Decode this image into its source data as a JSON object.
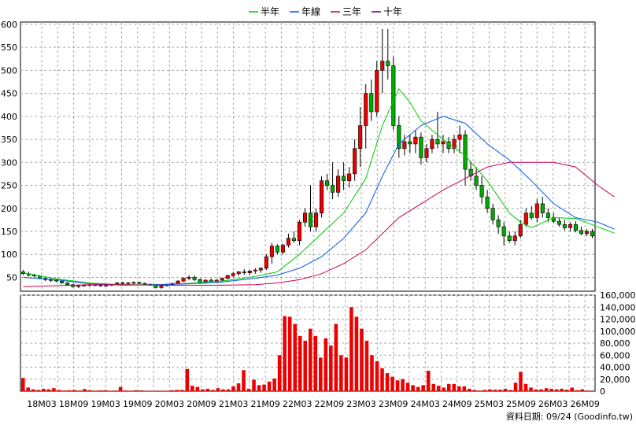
{
  "legend": [
    {
      "label": "半年",
      "color": "#00cc00"
    },
    {
      "label": "年線",
      "color": "#0055ee"
    },
    {
      "label": "三年",
      "color": "#cc0055"
    },
    {
      "label": "十年",
      "color": "#660088"
    }
  ],
  "source_label": "資料日期: 09/24  (Goodinfo.tw)",
  "chart_data": [
    {
      "type": "candlestick",
      "title": "",
      "x_ticks": [
        "18M03",
        "18M09",
        "19M03",
        "19M09",
        "20M03",
        "20M09",
        "21M03",
        "21M09",
        "22M03",
        "22M09",
        "23M03",
        "23M09",
        "24M03",
        "24M09",
        "25M03",
        "25M09",
        "26M03",
        "26M09"
      ],
      "y_ticks": [
        50,
        100,
        150,
        200,
        250,
        300,
        350,
        400,
        450,
        500,
        550,
        600
      ],
      "ylim": [
        20,
        605
      ],
      "grid": true,
      "candles": [
        [
          62,
          66,
          55,
          58
        ],
        [
          58,
          62,
          52,
          55
        ],
        [
          55,
          58,
          50,
          53
        ],
        [
          53,
          55,
          46,
          48
        ],
        [
          48,
          50,
          42,
          45
        ],
        [
          45,
          48,
          40,
          44
        ],
        [
          44,
          46,
          40,
          42
        ],
        [
          42,
          44,
          36,
          38
        ],
        [
          38,
          40,
          32,
          34
        ],
        [
          34,
          36,
          28,
          30
        ],
        [
          30,
          34,
          27,
          32
        ],
        [
          32,
          35,
          30,
          33
        ],
        [
          33,
          36,
          31,
          34
        ],
        [
          34,
          36,
          31,
          33
        ],
        [
          33,
          35,
          30,
          32
        ],
        [
          32,
          34,
          30,
          33
        ],
        [
          33,
          36,
          31,
          35
        ],
        [
          35,
          40,
          33,
          38
        ],
        [
          38,
          41,
          35,
          37
        ],
        [
          37,
          40,
          34,
          38
        ],
        [
          38,
          41,
          35,
          39
        ],
        [
          39,
          41,
          35,
          37
        ],
        [
          37,
          39,
          33,
          35
        ],
        [
          35,
          37,
          32,
          34
        ],
        [
          34,
          36,
          26,
          28
        ],
        [
          28,
          34,
          25,
          32
        ],
        [
          32,
          36,
          30,
          34
        ],
        [
          34,
          38,
          32,
          37
        ],
        [
          37,
          44,
          35,
          42
        ],
        [
          42,
          50,
          40,
          48
        ],
        [
          48,
          55,
          44,
          50
        ],
        [
          50,
          54,
          42,
          45
        ],
        [
          45,
          48,
          36,
          38
        ],
        [
          38,
          46,
          36,
          44
        ],
        [
          44,
          48,
          38,
          40
        ],
        [
          40,
          46,
          38,
          44
        ],
        [
          44,
          50,
          42,
          48
        ],
        [
          48,
          56,
          46,
          54
        ],
        [
          54,
          62,
          50,
          58
        ],
        [
          58,
          64,
          54,
          62
        ],
        [
          62,
          68,
          56,
          60
        ],
        [
          60,
          66,
          55,
          64
        ],
        [
          64,
          70,
          58,
          66
        ],
        [
          66,
          72,
          60,
          70
        ],
        [
          70,
          100,
          66,
          95
        ],
        [
          95,
          125,
          80,
          118
        ],
        [
          118,
          122,
          100,
          105
        ],
        [
          105,
          124,
          100,
          120
        ],
        [
          120,
          145,
          115,
          135
        ],
        [
          135,
          150,
          125,
          130
        ],
        [
          130,
          175,
          120,
          170
        ],
        [
          170,
          200,
          160,
          190
        ],
        [
          190,
          250,
          150,
          160
        ],
        [
          160,
          200,
          150,
          190
        ],
        [
          190,
          270,
          180,
          260
        ],
        [
          260,
          275,
          240,
          250
        ],
        [
          250,
          300,
          220,
          235
        ],
        [
          235,
          285,
          225,
          270
        ],
        [
          270,
          300,
          240,
          260
        ],
        [
          260,
          290,
          245,
          275
        ],
        [
          275,
          350,
          260,
          330
        ],
        [
          330,
          420,
          290,
          380
        ],
        [
          380,
          470,
          330,
          450
        ],
        [
          450,
          480,
          390,
          410
        ],
        [
          410,
          520,
          400,
          500
        ],
        [
          500,
          590,
          450,
          520
        ],
        [
          520,
          590,
          480,
          510
        ],
        [
          510,
          530,
          370,
          380
        ],
        [
          380,
          400,
          310,
          330
        ],
        [
          330,
          360,
          315,
          345
        ],
        [
          345,
          360,
          320,
          340
        ],
        [
          340,
          370,
          320,
          355
        ],
        [
          355,
          365,
          295,
          310
        ],
        [
          310,
          340,
          300,
          330
        ],
        [
          330,
          360,
          320,
          350
        ],
        [
          350,
          410,
          330,
          340
        ],
        [
          340,
          360,
          320,
          345
        ],
        [
          345,
          355,
          320,
          330
        ],
        [
          330,
          360,
          320,
          350
        ],
        [
          350,
          380,
          320,
          360
        ],
        [
          360,
          370,
          250,
          285
        ],
        [
          285,
          300,
          260,
          270
        ],
        [
          270,
          290,
          240,
          250
        ],
        [
          250,
          270,
          210,
          225
        ],
        [
          225,
          240,
          190,
          200
        ],
        [
          200,
          210,
          165,
          175
        ],
        [
          175,
          185,
          145,
          160
        ],
        [
          160,
          170,
          120,
          140
        ],
        [
          140,
          150,
          125,
          130
        ],
        [
          130,
          150,
          120,
          140
        ],
        [
          140,
          175,
          135,
          165
        ],
        [
          165,
          200,
          160,
          190
        ],
        [
          190,
          205,
          175,
          180
        ],
        [
          180,
          220,
          170,
          210
        ],
        [
          210,
          225,
          180,
          190
        ],
        [
          190,
          200,
          170,
          180
        ],
        [
          180,
          190,
          168,
          172
        ],
        [
          172,
          180,
          160,
          165
        ],
        [
          165,
          175,
          152,
          158
        ],
        [
          158,
          170,
          150,
          165
        ],
        [
          165,
          172,
          148,
          152
        ],
        [
          152,
          160,
          142,
          145
        ],
        [
          145,
          155,
          140,
          150
        ],
        [
          150,
          155,
          135,
          140
        ]
      ],
      "ma_lines": [
        {
          "name": "半年",
          "values": [
            [
              0,
              60
            ],
            [
              6,
              47
            ],
            [
              12,
              38
            ],
            [
              18,
              34
            ],
            [
              24,
              34
            ],
            [
              30,
              37
            ],
            [
              36,
              42
            ],
            [
              42,
              52
            ],
            [
              46,
              62
            ],
            [
              50,
              100
            ],
            [
              54,
              145
            ],
            [
              58,
              190
            ],
            [
              62,
              265
            ],
            [
              65,
              380
            ],
            [
              68,
              460
            ],
            [
              70,
              430
            ],
            [
              72,
              390
            ],
            [
              76,
              350
            ],
            [
              80,
              315
            ],
            [
              84,
              260
            ],
            [
              88,
              190
            ],
            [
              90,
              170
            ],
            [
              92,
              158
            ],
            [
              96,
              180
            ],
            [
              100,
              178
            ],
            [
              104,
              160
            ],
            [
              107,
              146
            ]
          ]
        },
        {
          "name": "年線",
          "values": [
            [
              0,
              50
            ],
            [
              6,
              45
            ],
            [
              12,
              36
            ],
            [
              18,
              33
            ],
            [
              24,
              34
            ],
            [
              30,
              36
            ],
            [
              36,
              40
            ],
            [
              42,
              48
            ],
            [
              46,
              55
            ],
            [
              50,
              70
            ],
            [
              54,
              95
            ],
            [
              58,
              135
            ],
            [
              62,
              190
            ],
            [
              65,
              270
            ],
            [
              68,
              340
            ],
            [
              72,
              380
            ],
            [
              76,
              400
            ],
            [
              80,
              385
            ],
            [
              84,
              340
            ],
            [
              88,
              305
            ],
            [
              92,
              260
            ],
            [
              96,
              210
            ],
            [
              100,
              180
            ],
            [
              104,
              170
            ],
            [
              107,
              155
            ]
          ]
        },
        {
          "name": "三年",
          "values": [
            [
              0,
              30
            ],
            [
              6,
              32
            ],
            [
              12,
              34
            ],
            [
              18,
              34
            ],
            [
              24,
              33
            ],
            [
              30,
              33
            ],
            [
              36,
              33
            ],
            [
              42,
              34
            ],
            [
              46,
              38
            ],
            [
              50,
              45
            ],
            [
              54,
              58
            ],
            [
              58,
              80
            ],
            [
              62,
              110
            ],
            [
              65,
              145
            ],
            [
              68,
              180
            ],
            [
              72,
              210
            ],
            [
              76,
              240
            ],
            [
              80,
              265
            ],
            [
              84,
              290
            ],
            [
              88,
              300
            ],
            [
              92,
              300
            ],
            [
              96,
              300
            ],
            [
              100,
              290
            ],
            [
              104,
              250
            ],
            [
              107,
              225
            ]
          ]
        }
      ]
    },
    {
      "type": "bar",
      "title": "",
      "y_ticks": [
        0,
        20000,
        40000,
        60000,
        80000,
        100000,
        120000,
        140000,
        160000
      ],
      "y_tick_labels": [
        "0",
        "20,000",
        "40,000",
        "60,000",
        "80,000",
        "100,000",
        "120,000",
        "140,000",
        "160,000"
      ],
      "ylim": [
        0,
        160000
      ],
      "grid": true,
      "values": [
        22000,
        6000,
        3000,
        2000,
        4000,
        3000,
        5000,
        2000,
        1000,
        1500,
        2000,
        1000,
        3500,
        1500,
        800,
        1200,
        1500,
        600,
        900,
        7000,
        1000,
        800,
        1500,
        1200,
        600,
        500,
        800,
        600,
        800,
        1500,
        2000,
        2000,
        37000,
        9000,
        7000,
        3000,
        4000,
        2000,
        5000,
        3000,
        3000,
        8000,
        13000,
        35000,
        4000,
        19000,
        10000,
        11000,
        16000,
        21000,
        60000,
        125000,
        124000,
        112000,
        92000,
        84000,
        104000,
        92000,
        56000,
        88000,
        76000,
        112000,
        60000,
        56000,
        140000,
        124000,
        104000,
        84000,
        60000,
        50000,
        38000,
        30000,
        24000,
        18000,
        20000,
        14000,
        10000,
        7000,
        10000,
        34000,
        12000,
        9000,
        6000,
        12000,
        12000,
        8000,
        8000,
        4000,
        2000,
        1000,
        2000,
        3000,
        2500,
        2500,
        4000,
        2000,
        14000,
        32000,
        12000,
        6000,
        3000,
        3000,
        5000,
        4000,
        3000,
        4000,
        2500,
        6000,
        1500,
        3000,
        1000,
        800
      ]
    }
  ]
}
